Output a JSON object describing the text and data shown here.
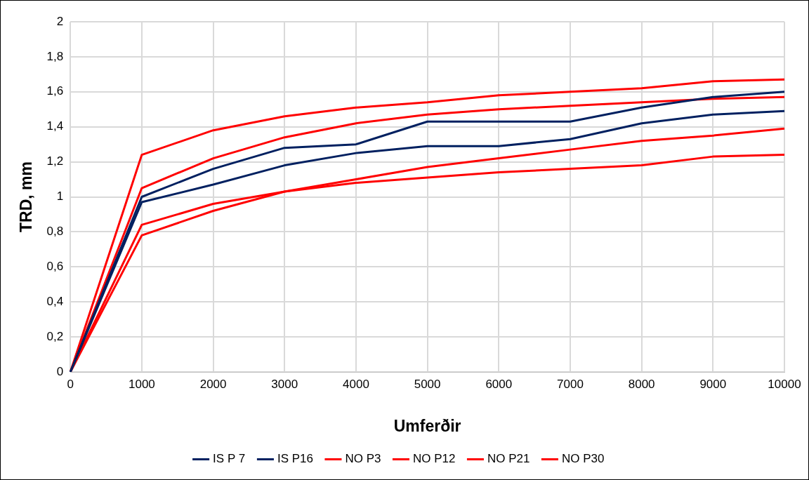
{
  "chart_data": {
    "type": "line",
    "xlabel": "Umferðir",
    "ylabel": "TRD, mm",
    "categories": [
      "0",
      "1000",
      "2000",
      "3000",
      "4000",
      "5000",
      "6000",
      "7000",
      "8000",
      "9000",
      "10000"
    ],
    "ylim": [
      0,
      2
    ],
    "yticks": [
      0,
      {
        "value": 0.2,
        "label": "0,2"
      },
      {
        "value": 0.4,
        "label": "0,4"
      },
      {
        "value": 0.6,
        "label": "0,6"
      },
      {
        "value": 0.8,
        "label": "0,8"
      },
      1,
      {
        "value": 1.2,
        "label": "1,2"
      },
      {
        "value": 1.4,
        "label": "1,4"
      },
      {
        "value": 1.6,
        "label": "1,6"
      },
      {
        "value": 1.8,
        "label": "1,8"
      },
      2
    ],
    "grid": true,
    "legend": "bottom",
    "marker": "none",
    "line_style": "solid",
    "series": [
      {
        "name": "IS P 7",
        "color": "#002060",
        "values": [
          0,
          1.0,
          1.16,
          1.28,
          1.3,
          1.43,
          1.43,
          1.43,
          1.51,
          1.57,
          1.6
        ]
      },
      {
        "name": "IS P16",
        "color": "#002060",
        "values": [
          0,
          0.97,
          1.07,
          1.18,
          1.25,
          1.29,
          1.29,
          1.33,
          1.42,
          1.47,
          1.49
        ]
      },
      {
        "name": "NO P3",
        "color": "#ff0000",
        "values": [
          0,
          1.24,
          1.38,
          1.46,
          1.51,
          1.54,
          1.58,
          1.6,
          1.62,
          1.66,
          1.67
        ]
      },
      {
        "name": "NO P12",
        "color": "#ff0000",
        "values": [
          0,
          1.05,
          1.22,
          1.34,
          1.42,
          1.47,
          1.5,
          1.52,
          1.54,
          1.56,
          1.57
        ]
      },
      {
        "name": "NO P21",
        "color": "#ff0000",
        "values": [
          0,
          0.84,
          0.96,
          1.03,
          1.08,
          1.11,
          1.14,
          1.16,
          1.18,
          1.23,
          1.24
        ]
      },
      {
        "name": "NO P30",
        "color": "#ff0000",
        "values": [
          0,
          0.78,
          0.92,
          1.03,
          1.1,
          1.17,
          1.22,
          1.27,
          1.32,
          1.35,
          1.39
        ]
      }
    ]
  }
}
